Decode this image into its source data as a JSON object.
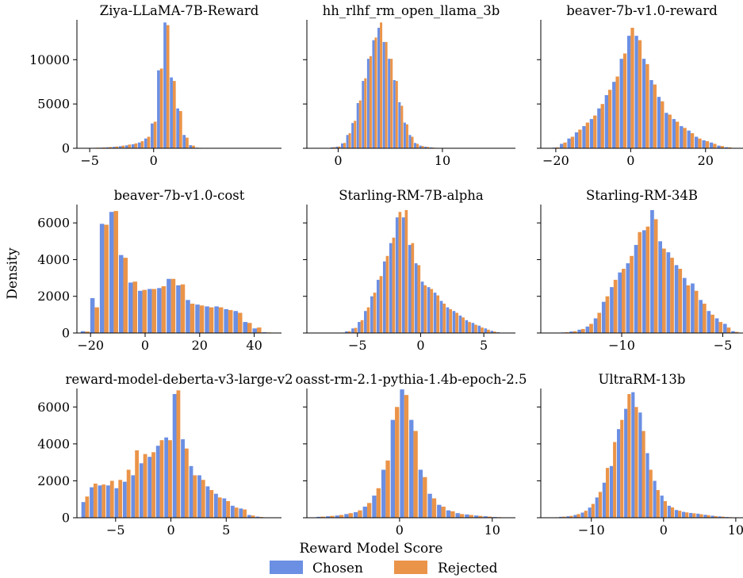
{
  "figure": {
    "xlabel": "Reward Model Score",
    "ylabel": "Density"
  },
  "legend": {
    "items": [
      {
        "label": "Chosen",
        "color": "#6b8fe3"
      },
      {
        "label": "Rejected",
        "color": "#ea9449"
      }
    ]
  },
  "chart_data": [
    {
      "type": "bar",
      "title": "Ziya-LLaMA-7B-Reward",
      "xlim": [
        -6,
        10
      ],
      "ylim": [
        0,
        14500
      ],
      "xticks": [
        -5,
        0
      ],
      "yticks": [
        0,
        5000,
        10000
      ],
      "series": [
        {
          "name": "Chosen",
          "color": "#6b8fe3",
          "x": [
            -5.0,
            -4.5,
            -4.0,
            -3.5,
            -3.0,
            -2.5,
            -2.0,
            -1.5,
            -1.0,
            -0.5,
            0.0,
            0.5,
            1.0,
            1.5,
            2.0,
            2.5,
            3.0,
            3.5
          ],
          "values": [
            20,
            50,
            70,
            110,
            160,
            230,
            330,
            450,
            650,
            1100,
            2800,
            8800,
            14200,
            8000,
            4500,
            1500,
            350,
            70
          ]
        },
        {
          "name": "Rejected",
          "color": "#ea9449",
          "x": [
            -5.0,
            -4.5,
            -4.0,
            -3.5,
            -3.0,
            -2.5,
            -2.0,
            -1.5,
            -1.0,
            -0.5,
            0.0,
            0.5,
            1.0,
            1.5,
            2.0,
            2.5,
            3.0,
            3.5
          ],
          "values": [
            30,
            70,
            90,
            140,
            200,
            300,
            420,
            550,
            800,
            1300,
            3000,
            9000,
            13900,
            7600,
            4200,
            1200,
            300,
            50
          ]
        }
      ]
    },
    {
      "type": "bar",
      "title": "hh_rlhf_rm_open_llama_3b",
      "xlim": [
        -3,
        17
      ],
      "ylim": [
        0,
        14500
      ],
      "xticks": [
        0,
        10
      ],
      "yticks": [],
      "series": [
        {
          "name": "Chosen",
          "color": "#6b8fe3",
          "x": [
            -0.5,
            0.0,
            0.5,
            1.0,
            1.5,
            2.0,
            2.5,
            3.0,
            3.5,
            4.0,
            4.5,
            5.0,
            5.5,
            6.0,
            6.5,
            7.0,
            7.5,
            8.0,
            8.5,
            9.0,
            9.5,
            10.0,
            10.5
          ],
          "values": [
            100,
            180,
            550,
            1500,
            2850,
            5100,
            7600,
            10100,
            12200,
            13600,
            12000,
            10100,
            7700,
            5200,
            2900,
            1500,
            600,
            300,
            180,
            100,
            50,
            30,
            20
          ]
        },
        {
          "name": "Rejected",
          "color": "#ea9449",
          "x": [
            -0.5,
            0.0,
            0.5,
            1.0,
            1.5,
            2.0,
            2.5,
            3.0,
            3.5,
            4.0,
            4.5,
            5.0,
            5.5,
            6.0,
            6.5,
            7.0,
            7.5,
            8.0,
            8.5,
            9.0,
            9.5,
            10.0,
            10.5
          ],
          "values": [
            120,
            200,
            600,
            1700,
            3100,
            5400,
            7900,
            10400,
            12500,
            14200,
            12000,
            10100,
            7600,
            4800,
            2700,
            1300,
            500,
            250,
            150,
            80,
            40,
            25,
            15
          ]
        }
      ]
    },
    {
      "type": "bar",
      "title": "beaver-7b-v1.0-reward",
      "xlim": [
        -24,
        30
      ],
      "ylim": [
        0,
        14500
      ],
      "xticks": [
        -20,
        0,
        20
      ],
      "yticks": [],
      "series": [
        {
          "name": "Chosen",
          "color": "#6b8fe3",
          "x": [
            -20,
            -18,
            -16,
            -14,
            -12,
            -10,
            -8,
            -6,
            -4,
            -2,
            0,
            2,
            4,
            6,
            8,
            10,
            12,
            14,
            16,
            18,
            20,
            22,
            24,
            26
          ],
          "values": [
            70,
            500,
            1100,
            1800,
            2500,
            3300,
            4500,
            6000,
            7500,
            10100,
            12700,
            12700,
            10100,
            7700,
            5800,
            4000,
            3300,
            2500,
            2000,
            1300,
            900,
            650,
            300,
            120
          ]
        },
        {
          "name": "Rejected",
          "color": "#ea9449",
          "x": [
            -20,
            -18,
            -16,
            -14,
            -12,
            -10,
            -8,
            -6,
            -4,
            -2,
            0,
            2,
            4,
            6,
            8,
            10,
            12,
            14,
            16,
            18,
            20,
            22,
            24,
            26
          ],
          "values": [
            100,
            650,
            1300,
            2100,
            2900,
            3700,
            5000,
            6600,
            8100,
            10700,
            13600,
            12200,
            9500,
            7200,
            5300,
            3800,
            3000,
            2300,
            1700,
            1100,
            800,
            500,
            250,
            100
          ]
        }
      ]
    },
    {
      "type": "bar",
      "title": "beaver-7b-v1.0-cost",
      "xlim": [
        -25,
        50
      ],
      "ylim": [
        0,
        7000
      ],
      "xticks": [
        -20,
        0,
        20,
        40
      ],
      "yticks": [
        0,
        2000,
        4000,
        6000
      ],
      "series": [
        {
          "name": "Chosen",
          "color": "#6b8fe3",
          "x": [
            -22,
            -18.5,
            -15,
            -11.5,
            -8,
            -4.5,
            -1,
            2.5,
            6,
            9.5,
            13,
            16.5,
            20,
            23.5,
            27,
            30.5,
            34,
            37.5,
            41,
            44.5
          ],
          "values": [
            100,
            1900,
            5950,
            6600,
            4250,
            2750,
            2300,
            2400,
            2450,
            2950,
            2600,
            1800,
            1550,
            1450,
            1450,
            1300,
            1200,
            600,
            250,
            40
          ]
        },
        {
          "name": "Rejected",
          "color": "#ea9449",
          "x": [
            -22,
            -18.5,
            -15,
            -11.5,
            -8,
            -4.5,
            -1,
            2.5,
            6,
            9.5,
            13,
            16.5,
            20,
            23.5,
            27,
            30.5,
            34,
            37.5,
            41,
            44.5
          ],
          "values": [
            80,
            1400,
            5900,
            6650,
            4100,
            2800,
            2350,
            2400,
            2550,
            2950,
            2650,
            1600,
            1500,
            1400,
            1400,
            1250,
            1100,
            550,
            300,
            30
          ]
        }
      ]
    },
    {
      "type": "bar",
      "title": "Starling-RM-7B-alpha",
      "xlim": [
        -9,
        7.5
      ],
      "ylim": [
        0,
        7000
      ],
      "xticks": [
        -5,
        0,
        5
      ],
      "yticks": [],
      "series": [
        {
          "name": "Chosen",
          "color": "#6b8fe3",
          "x": [
            -6.25,
            -5.75,
            -5.25,
            -4.75,
            -4.25,
            -3.75,
            -3.25,
            -2.75,
            -2.25,
            -1.75,
            -1.25,
            -0.75,
            -0.25,
            0.25,
            0.75,
            1.25,
            1.75,
            2.25,
            2.75,
            3.25,
            3.75,
            4.25,
            4.75,
            5.25,
            5.75,
            6.25
          ],
          "values": [
            20,
            90,
            250,
            600,
            1200,
            2000,
            2900,
            3900,
            4900,
            6300,
            6300,
            4800,
            3800,
            2800,
            2500,
            2200,
            1750,
            1400,
            1200,
            950,
            700,
            550,
            400,
            250,
            120,
            40
          ]
        },
        {
          "name": "Rejected",
          "color": "#ea9449",
          "x": [
            -6.25,
            -5.75,
            -5.25,
            -4.75,
            -4.25,
            -3.75,
            -3.25,
            -2.75,
            -2.25,
            -1.75,
            -1.25,
            -0.75,
            -0.25,
            0.25,
            0.75,
            1.25,
            1.75,
            2.25,
            2.75,
            3.25,
            3.75,
            4.25,
            4.75,
            5.25,
            5.75,
            6.25
          ],
          "values": [
            25,
            100,
            280,
            700,
            1400,
            2200,
            3100,
            4200,
            5200,
            6600,
            6700,
            4900,
            3700,
            2600,
            2400,
            2050,
            1600,
            1300,
            1100,
            850,
            600,
            450,
            300,
            180,
            80,
            20
          ]
        }
      ]
    },
    {
      "type": "bar",
      "title": "Starling-RM-34B",
      "xlim": [
        -14,
        -4
      ],
      "ylim": [
        0,
        7000
      ],
      "xticks": [
        -10,
        -5
      ],
      "yticks": [],
      "series": [
        {
          "name": "Chosen",
          "color": "#6b8fe3",
          "x": [
            -12.8,
            -12.4,
            -12.0,
            -11.6,
            -11.2,
            -10.8,
            -10.4,
            -10.0,
            -9.6,
            -9.2,
            -8.8,
            -8.4,
            -8.0,
            -7.6,
            -7.2,
            -6.8,
            -6.4,
            -6.0,
            -5.6,
            -5.2,
            -4.8,
            -4.4
          ],
          "values": [
            30,
            80,
            180,
            350,
            800,
            1700,
            2500,
            3300,
            3800,
            4800,
            5600,
            6700,
            5000,
            4400,
            3700,
            3000,
            2700,
            1800,
            1200,
            800,
            500,
            100
          ]
        },
        {
          "name": "Rejected",
          "color": "#ea9449",
          "x": [
            -12.8,
            -12.4,
            -12.0,
            -11.6,
            -11.2,
            -10.8,
            -10.4,
            -10.0,
            -9.6,
            -9.2,
            -8.8,
            -8.4,
            -8.0,
            -7.6,
            -7.2,
            -6.8,
            -6.4,
            -6.0,
            -5.6,
            -5.2,
            -4.8,
            -4.4
          ],
          "values": [
            40,
            100,
            220,
            500,
            1100,
            2000,
            2900,
            3500,
            4200,
            5500,
            5800,
            6200,
            4600,
            4100,
            3500,
            2600,
            2300,
            1600,
            1000,
            600,
            300,
            60
          ]
        }
      ]
    },
    {
      "type": "bar",
      "title": "reward-model-deberta-v3-large-v2",
      "xlim": [
        -8.5,
        10
      ],
      "ylim": [
        0,
        7000
      ],
      "xticks": [
        -5,
        0,
        5
      ],
      "yticks": [
        0,
        2000,
        4000,
        6000
      ],
      "series": [
        {
          "name": "Chosen",
          "color": "#6b8fe3",
          "x": [
            -7.75,
            -7.0,
            -6.25,
            -5.5,
            -4.75,
            -4.0,
            -3.25,
            -2.5,
            -1.75,
            -1.0,
            -0.25,
            0.5,
            1.25,
            2.0,
            2.75,
            3.5,
            4.25,
            5.0,
            5.75,
            6.5,
            7.25,
            8.0,
            8.75
          ],
          "values": [
            850,
            1650,
            1750,
            1750,
            1600,
            1950,
            2300,
            2950,
            3300,
            3900,
            4350,
            6700,
            4250,
            2800,
            2300,
            1700,
            1300,
            1050,
            650,
            500,
            150,
            60,
            20
          ]
        },
        {
          "name": "Rejected",
          "color": "#ea9449",
          "x": [
            -7.75,
            -7.0,
            -6.25,
            -5.5,
            -4.75,
            -4.0,
            -3.25,
            -2.5,
            -1.75,
            -1.0,
            -0.25,
            0.5,
            1.25,
            2.0,
            2.75,
            3.5,
            4.25,
            5.0,
            5.75,
            6.5,
            7.25,
            8.0,
            8.75
          ],
          "values": [
            1150,
            1850,
            1800,
            2000,
            2050,
            2600,
            3650,
            3450,
            3550,
            4200,
            4200,
            6900,
            3750,
            2300,
            2050,
            1500,
            1100,
            900,
            550,
            450,
            120,
            40,
            15
          ]
        }
      ]
    },
    {
      "type": "bar",
      "title": "oasst-rm-2.1-pythia-1.4b-epoch-2.5",
      "xlim": [
        -10,
        12.5
      ],
      "ylim": [
        0,
        7000
      ],
      "xticks": [
        0,
        10
      ],
      "yticks": [],
      "series": [
        {
          "name": "Chosen",
          "color": "#6b8fe3",
          "x": [
            -8.5,
            -7.5,
            -6.5,
            -5.5,
            -4.5,
            -3.5,
            -2.5,
            -1.5,
            -0.5,
            0.5,
            1.5,
            2.5,
            3.5,
            4.5,
            5.5,
            6.5,
            7.5,
            8.5,
            9.5,
            10.5
          ],
          "values": [
            50,
            80,
            120,
            200,
            300,
            600,
            1200,
            2600,
            5300,
            6950,
            5300,
            2600,
            1300,
            700,
            400,
            250,
            180,
            120,
            80,
            40
          ]
        },
        {
          "name": "Rejected",
          "color": "#ea9449",
          "x": [
            -8.5,
            -7.5,
            -6.5,
            -5.5,
            -4.5,
            -3.5,
            -2.5,
            -1.5,
            -0.5,
            0.5,
            1.5,
            2.5,
            3.5,
            4.5,
            5.5,
            6.5,
            7.5,
            8.5,
            9.5,
            10.5
          ],
          "values": [
            60,
            100,
            150,
            250,
            400,
            800,
            1600,
            3100,
            6000,
            6650,
            4700,
            2200,
            1050,
            600,
            350,
            200,
            150,
            100,
            60,
            30
          ]
        }
      ]
    },
    {
      "type": "bar",
      "title": "UltraRM-13b",
      "xlim": [
        -17,
        11
      ],
      "ylim": [
        0,
        7000
      ],
      "xticks": [
        -10,
        0,
        10
      ],
      "yticks": [],
      "series": [
        {
          "name": "Chosen",
          "color": "#6b8fe3",
          "x": [
            -15,
            -14,
            -13,
            -12,
            -11,
            -10,
            -9,
            -8,
            -7,
            -6,
            -5,
            -4,
            -3,
            -2,
            -1,
            0,
            1,
            2,
            3,
            4,
            5,
            6,
            7,
            8,
            9
          ],
          "values": [
            20,
            50,
            80,
            150,
            280,
            550,
            1100,
            1900,
            2800,
            4800,
            5900,
            6800,
            5700,
            3500,
            2000,
            1200,
            650,
            420,
            320,
            260,
            220,
            160,
            110,
            70,
            40
          ]
        },
        {
          "name": "Rejected",
          "color": "#ea9449",
          "x": [
            -15,
            -14,
            -13,
            -12,
            -11,
            -10,
            -9,
            -8,
            -7,
            -6,
            -5,
            -4,
            -3,
            -2,
            -1,
            0,
            1,
            2,
            3,
            4,
            5,
            6,
            7,
            8,
            9
          ],
          "values": [
            25,
            60,
            100,
            200,
            380,
            750,
            1400,
            2700,
            4100,
            5300,
            6700,
            6000,
            4700,
            2600,
            1500,
            900,
            560,
            380,
            290,
            240,
            190,
            140,
            90,
            60,
            30
          ]
        }
      ]
    }
  ]
}
